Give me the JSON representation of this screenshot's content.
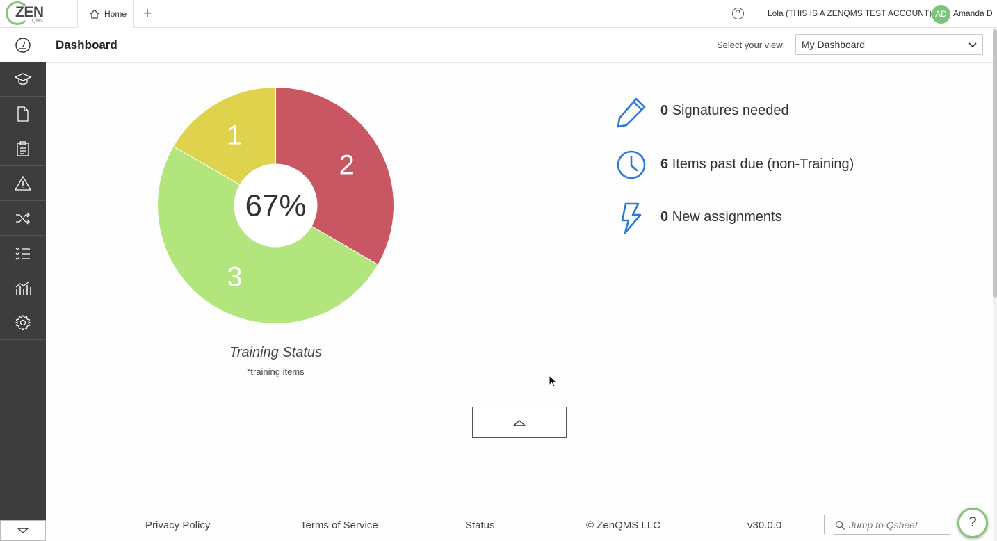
{
  "header": {
    "logo_text": "ZEN",
    "logo_sub": "QMS",
    "tab_home_label": "Home",
    "tab_add_symbol": "+",
    "account_name": "Lola (THIS IS A ZENQMS TEST ACCOUNT)",
    "avatar_initials": "AD",
    "user_name": "Amanda D"
  },
  "subbar": {
    "page_title": "Dashboard",
    "view_label": "Select your view:",
    "view_value": "My Dashboard"
  },
  "sidebar": {
    "items": [
      {
        "icon": "graduation-cap-icon"
      },
      {
        "icon": "document-icon"
      },
      {
        "icon": "clipboard-icon"
      },
      {
        "icon": "warning-icon"
      },
      {
        "icon": "shuffle-icon"
      },
      {
        "icon": "checklist-icon"
      },
      {
        "icon": "analytics-icon"
      },
      {
        "icon": "gear-icon"
      }
    ]
  },
  "chart_data": {
    "type": "pie",
    "title": "Training Status",
    "subtitle": "*training items",
    "center_label": "67%",
    "slices": [
      {
        "label": "2",
        "value": 2,
        "color": "#c95663"
      },
      {
        "label": "3",
        "value": 3,
        "color": "#b2e57c"
      },
      {
        "label": "1",
        "value": 1,
        "color": "#dfd24c"
      }
    ]
  },
  "stats": [
    {
      "count": "0",
      "label": "Signatures needed",
      "icon": "pencil-icon"
    },
    {
      "count": "6",
      "label": "Items past due (non-Training)",
      "icon": "clock-icon"
    },
    {
      "count": "0",
      "label": "New assignments",
      "icon": "lightning-icon"
    }
  ],
  "footer": {
    "privacy": "Privacy Policy",
    "terms": "Terms of Service",
    "status": "Status",
    "copyright": "© ZenQMS LLC",
    "version": "v30.0.0",
    "search_placeholder": "Jump to Qsheet",
    "help_symbol": "?"
  },
  "colors": {
    "accent_green": "#8ac27c",
    "icon_blue": "#2b7bd6",
    "sidebar_bg": "#3d3d3d"
  }
}
